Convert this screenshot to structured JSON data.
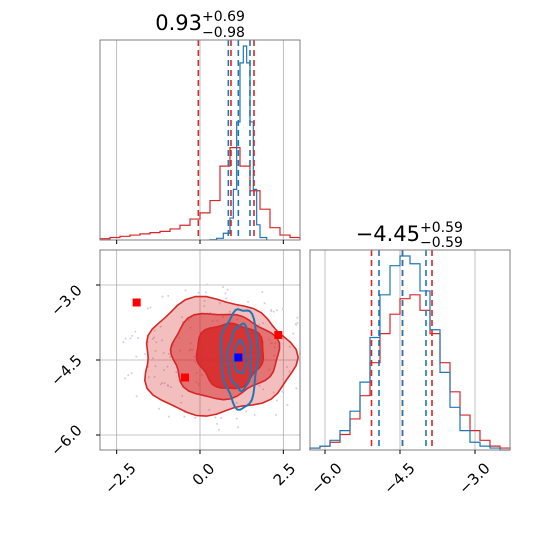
{
  "colors": {
    "red": "#d62728",
    "blue": "#1f77b4",
    "grid": "#b0b0b0",
    "frame": "#7f7f7f",
    "marker_red": "#ff0000",
    "marker_blue": "#0000ff"
  },
  "chart_data": [
    {
      "type": "histogram",
      "panel": "top-left",
      "title": {
        "value": "0.93",
        "plus": "+0.69",
        "minus": "−0.98"
      },
      "xlim": [
        -3.0,
        3.0
      ],
      "grid": true,
      "show_tick_labels": false,
      "x_ticks": [
        -2.5,
        0.0,
        2.5
      ],
      "series": [
        {
          "color": "red",
          "bins": [
            -3.0,
            -2.7,
            -2.4,
            -2.1,
            -1.8,
            -1.5,
            -1.2,
            -0.9,
            -0.6,
            -0.3,
            0.0,
            0.3,
            0.6,
            0.9,
            1.2,
            1.5,
            1.8,
            2.1,
            2.4,
            2.7,
            3.0
          ],
          "counts": [
            1,
            2,
            3,
            4,
            5,
            6,
            7,
            9,
            12,
            17,
            22,
            32,
            60,
            75,
            60,
            40,
            25,
            10,
            4,
            2
          ]
        },
        {
          "color": "blue",
          "bins": [
            0.3,
            0.5,
            0.7,
            0.9,
            1.0,
            1.1,
            1.2,
            1.3,
            1.4,
            1.5,
            1.6,
            1.7,
            1.8,
            2.0
          ],
          "counts": [
            2,
            10,
            40,
            130,
            300,
            700,
            1050,
            1150,
            1050,
            700,
            300,
            90,
            15
          ]
        }
      ],
      "quantile_lines": {
        "red": [
          -0.05,
          0.93,
          1.62
        ],
        "blue": [
          0.85,
          1.15,
          1.5
        ]
      }
    },
    {
      "type": "histogram",
      "panel": "bottom-right",
      "title": {
        "value": "−4.45",
        "plus": "+0.59",
        "minus": "−0.59"
      },
      "xlim": [
        -6.3,
        -2.3
      ],
      "grid": true,
      "x_ticks": [
        -6.0,
        -4.5,
        -3.0
      ],
      "x_tick_labels": [
        "−6.0",
        "−4.5",
        "−3.0"
      ],
      "series": [
        {
          "color": "red",
          "bins": [
            -6.3,
            -6.1,
            -5.9,
            -5.7,
            -5.5,
            -5.3,
            -5.1,
            -4.9,
            -4.7,
            -4.5,
            -4.3,
            -4.1,
            -3.9,
            -3.7,
            -3.5,
            -3.3,
            -3.1,
            -2.9,
            -2.7,
            -2.5,
            -2.3
          ],
          "counts": [
            1,
            2,
            4,
            8,
            16,
            28,
            45,
            60,
            70,
            78,
            80,
            72,
            60,
            45,
            30,
            18,
            10,
            5,
            2,
            1
          ]
        },
        {
          "color": "blue",
          "bins": [
            -6.3,
            -6.1,
            -5.9,
            -5.7,
            -5.5,
            -5.3,
            -5.1,
            -4.9,
            -4.7,
            -4.5,
            -4.3,
            -4.1,
            -3.9,
            -3.7,
            -3.5,
            -3.3,
            -3.1,
            -2.9,
            -2.7,
            -2.5,
            -2.3
          ],
          "counts": [
            1,
            2,
            5,
            10,
            20,
            35,
            58,
            80,
            95,
            100,
            96,
            82,
            62,
            40,
            22,
            10,
            4,
            2,
            1,
            0
          ]
        }
      ],
      "quantile_lines": {
        "red": [
          -5.07,
          -4.45,
          -3.86
        ],
        "blue": [
          -4.92,
          -4.45,
          -3.98
        ]
      }
    },
    {
      "type": "contour",
      "panel": "bottom-left",
      "xlim": [
        -3.0,
        3.0
      ],
      "ylim": [
        -6.3,
        -2.3
      ],
      "grid": true,
      "x_ticks": [
        -2.5,
        0.0,
        2.5
      ],
      "x_tick_labels": [
        "−2.5",
        "0.0",
        "2.5"
      ],
      "y_ticks": [
        -3.0,
        -4.5,
        -6.0
      ],
      "y_tick_labels": [
        "−3.0",
        "−4.5",
        "−6.0"
      ],
      "red_contours": [
        {
          "cx": 0.5,
          "cy": -4.45,
          "rx": 2.25,
          "ry": 1.15,
          "fill_opacity": 0.3
        },
        {
          "cx": 0.7,
          "cy": -4.4,
          "rx": 1.6,
          "ry": 0.85,
          "fill_opacity": 0.5
        },
        {
          "cx": 0.9,
          "cy": -4.4,
          "rx": 1.0,
          "ry": 0.65,
          "fill_opacity": 0.85
        }
      ],
      "blue_contours": [
        {
          "cx": 1.2,
          "cy": -4.45,
          "rx": 0.55,
          "ry": 1.0
        },
        {
          "cx": 1.2,
          "cy": -4.45,
          "rx": 0.35,
          "ry": 0.65
        },
        {
          "cx": 1.2,
          "cy": -4.45,
          "rx": 0.18,
          "ry": 0.32
        }
      ],
      "markers_red": [
        {
          "x": -1.9,
          "y": -3.35
        },
        {
          "x": -0.45,
          "y": -4.85
        },
        {
          "x": 2.35,
          "y": -4.0
        }
      ],
      "markers_blue": [
        {
          "x": 1.15,
          "y": -4.45
        }
      ]
    }
  ]
}
